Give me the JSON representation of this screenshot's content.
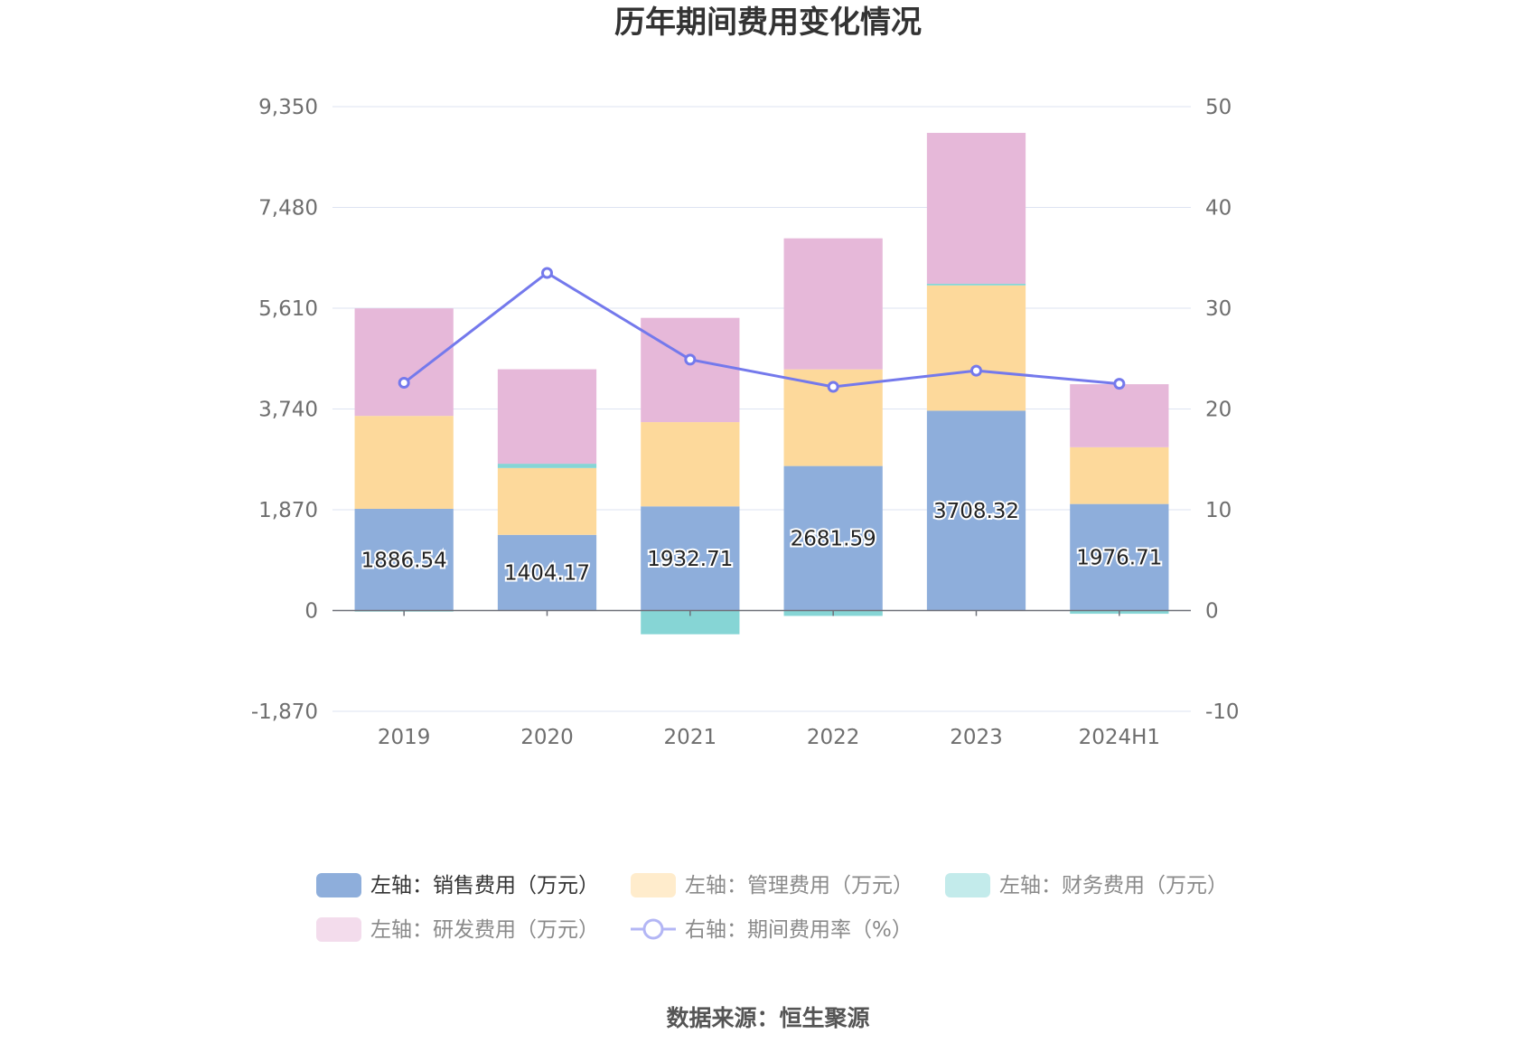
{
  "chart_data": {
    "type": "bar",
    "title": "历年期间费用变化情况",
    "categories": [
      "2019",
      "2020",
      "2021",
      "2022",
      "2023",
      "2024H1"
    ],
    "left_axis": {
      "ticks": [
        "9,350",
        "7,480",
        "5,610",
        "3,740",
        "1,870",
        "0",
        "-1,870"
      ],
      "range": [
        -1870,
        9350
      ]
    },
    "right_axis": {
      "ticks": [
        "50",
        "40",
        "30",
        "20",
        "10",
        "0",
        "-10"
      ],
      "range": [
        -10,
        50
      ]
    },
    "series": [
      {
        "name": "左轴：销售费用（万元）",
        "kind": "bar",
        "color": "#8eaedb",
        "values": [
          1886.54,
          1404.17,
          1932.71,
          2681.59,
          3708.32,
          1976.71
        ],
        "labels": [
          "1886.54",
          "1404.17",
          "1932.71",
          "2681.59",
          "3708.32",
          "1976.71"
        ]
      },
      {
        "name": "左轴：管理费用（万元）",
        "kind": "bar",
        "color": "#fdd99b",
        "values": [
          1725,
          1240,
          1563,
          1793,
          2325,
          1053
        ]
      },
      {
        "name": "左轴：财务费用（万元）",
        "kind": "bar",
        "color": "#86d5d5",
        "values": [
          -20,
          80,
          -440,
          -100,
          30,
          -60
        ]
      },
      {
        "name": "左轴：研发费用（万元）",
        "kind": "bar",
        "color": "#e6b8d9",
        "values": [
          1995,
          1753,
          1935,
          2432,
          2800,
          1170
        ]
      },
      {
        "name": "右轴：期间费用率（%）",
        "kind": "line",
        "color": "#7479ec",
        "values": [
          22.6,
          33.5,
          24.9,
          22.2,
          23.8,
          22.5
        ]
      }
    ],
    "legend_position": "bottom"
  },
  "source": "数据来源：恒生聚源"
}
